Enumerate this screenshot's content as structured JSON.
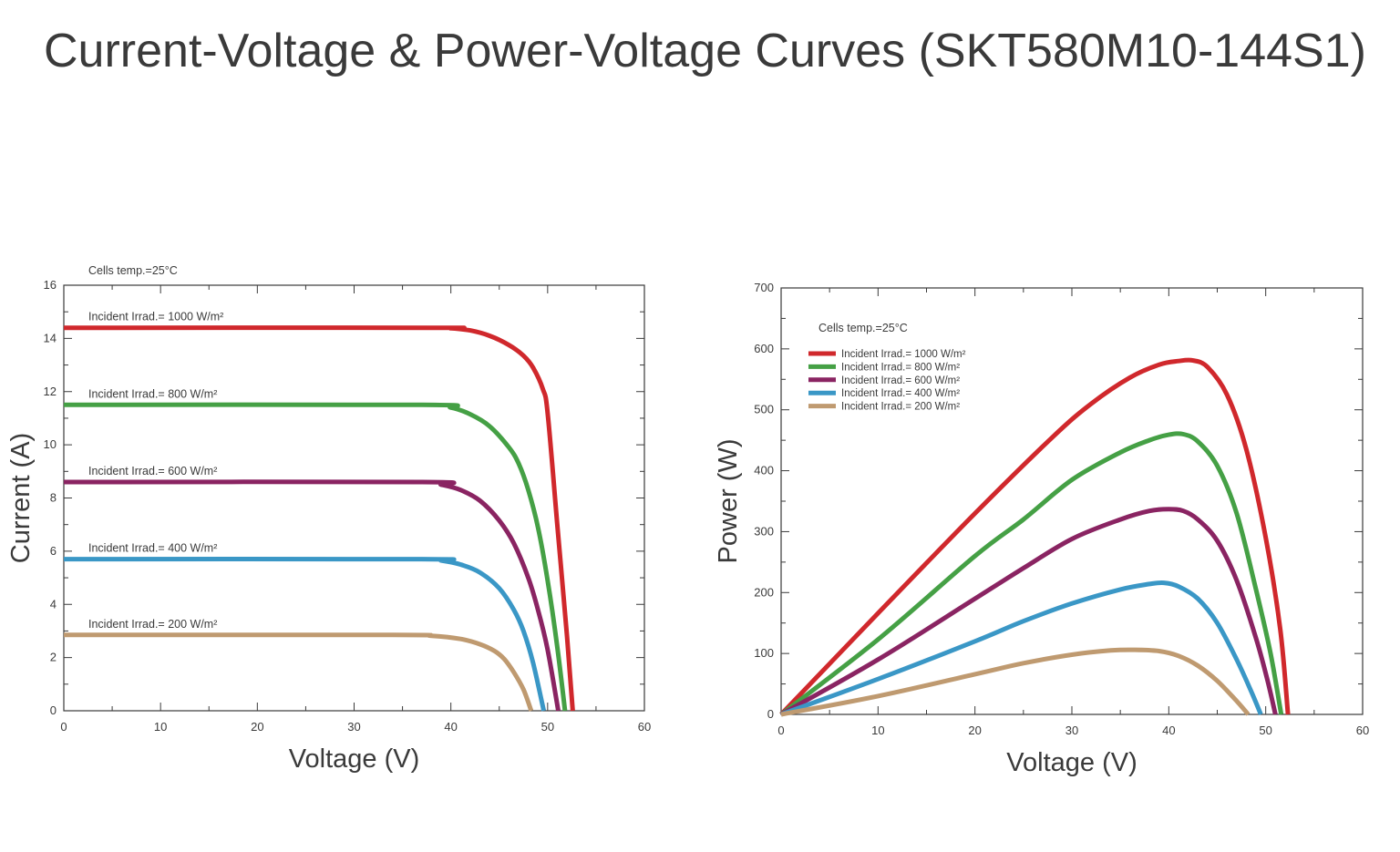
{
  "page": {
    "title": "Current-Voltage & Power-Voltage Curves (SKT580M10-144S1)"
  },
  "chart_data": [
    {
      "type": "line",
      "title": "Current-Voltage",
      "xlabel": "Voltage (V)",
      "ylabel": "Current (A)",
      "xlim": [
        0,
        60
      ],
      "ylim": [
        0,
        16
      ],
      "xticks": [
        0,
        10,
        20,
        30,
        40,
        50,
        60
      ],
      "yticks": [
        0,
        2,
        4,
        6,
        8,
        10,
        12,
        14,
        16
      ],
      "annotation": "Cells temp.=25°C",
      "legend": "inline-labels",
      "series": [
        {
          "name": "Incident Irrad.= 1000 W/m²",
          "color": "#d0282c",
          "x": [
            0,
            38,
            40,
            42,
            44,
            46,
            47.5,
            48.5,
            49.5,
            50,
            51,
            52,
            52.6
          ],
          "y": [
            14.4,
            14.4,
            14.38,
            14.3,
            14.1,
            13.75,
            13.35,
            12.9,
            12.1,
            11.2,
            7.0,
            2.8,
            0
          ]
        },
        {
          "name": "Incident Irrad.= 800 W/m²",
          "color": "#45a045",
          "x": [
            0,
            37,
            40,
            42,
            44,
            46,
            47,
            48,
            49,
            50,
            51,
            51.8
          ],
          "y": [
            11.5,
            11.5,
            11.4,
            11.15,
            10.7,
            9.9,
            9.3,
            8.3,
            6.9,
            4.9,
            2.4,
            0
          ]
        },
        {
          "name": "Incident Irrad.= 600 W/m²",
          "color": "#8a2462",
          "x": [
            0,
            37,
            39,
            41,
            43,
            45,
            46.5,
            48,
            49,
            50,
            51.1
          ],
          "y": [
            8.6,
            8.6,
            8.5,
            8.3,
            7.9,
            7.15,
            6.3,
            5.0,
            3.8,
            2.3,
            0
          ]
        },
        {
          "name": "Incident Irrad.= 400 W/m²",
          "color": "#3a97c6",
          "x": [
            0,
            37,
            39,
            41,
            43,
            45,
            46.5,
            47.5,
            48.5,
            49.6
          ],
          "y": [
            5.7,
            5.7,
            5.65,
            5.5,
            5.2,
            4.6,
            3.8,
            3.0,
            1.8,
            0
          ]
        },
        {
          "name": "Incident Irrad.= 200 W/m²",
          "color": "#bf9a70",
          "x": [
            0,
            34,
            38,
            41,
            43,
            44.5,
            45.5,
            46.5,
            47.5,
            48.3
          ],
          "y": [
            2.85,
            2.85,
            2.82,
            2.7,
            2.5,
            2.25,
            1.95,
            1.45,
            0.8,
            0
          ]
        }
      ]
    },
    {
      "type": "line",
      "title": "Power-Voltage",
      "xlabel": "Voltage (V)",
      "ylabel": "Power (W)",
      "xlim": [
        0,
        60
      ],
      "ylim": [
        0,
        700
      ],
      "xticks": [
        0,
        10,
        20,
        30,
        40,
        50,
        60
      ],
      "yticks": [
        0,
        100,
        200,
        300,
        400,
        500,
        600,
        700
      ],
      "annotation": "Cells temp.=25°C",
      "legend": "top-left",
      "series": [
        {
          "name": "Incident Irrad.= 1000 W/m²",
          "color": "#d0282c",
          "x": [
            0,
            10,
            20,
            28,
            32,
            36,
            39,
            41,
            42.5,
            44,
            46,
            48,
            50,
            51.5,
            52.3
          ],
          "y": [
            0,
            166,
            330,
            455,
            510,
            553,
            574,
            580,
            581,
            570,
            525,
            435,
            290,
            140,
            0
          ]
        },
        {
          "name": "Incident Irrad.= 800 W/m²",
          "color": "#45a045",
          "x": [
            0,
            10,
            20,
            25,
            30,
            35,
            38,
            40,
            41.5,
            43,
            45,
            47,
            49,
            50.5,
            51.6
          ],
          "y": [
            0,
            123,
            260,
            320,
            385,
            430,
            450,
            459,
            460,
            448,
            408,
            330,
            205,
            100,
            0
          ]
        },
        {
          "name": "Incident Irrad.= 600 W/m²",
          "color": "#8a2462",
          "x": [
            0,
            10,
            20,
            25,
            30,
            35,
            38,
            40,
            41.5,
            43,
            45,
            47,
            49,
            50.2,
            51.0
          ],
          "y": [
            0,
            90,
            190,
            240,
            288,
            320,
            334,
            337,
            334,
            320,
            285,
            220,
            125,
            55,
            0
          ]
        },
        {
          "name": "Incident Irrad.= 400 W/m²",
          "color": "#3a97c6",
          "x": [
            0,
            10,
            20,
            25,
            30,
            35,
            38,
            39.5,
            41,
            43,
            45,
            47,
            48.5,
            49.5
          ],
          "y": [
            0,
            58,
            120,
            153,
            182,
            205,
            214,
            216,
            210,
            190,
            150,
            90,
            38,
            0
          ]
        },
        {
          "name": "Incident Irrad.= 200 W/m²",
          "color": "#bf9a70",
          "x": [
            0,
            10,
            20,
            25,
            30,
            34,
            36.5,
            39,
            41,
            43,
            45,
            47,
            48.2
          ],
          "y": [
            0,
            30,
            66,
            84,
            98,
            105,
            106,
            104,
            96,
            80,
            55,
            22,
            0
          ]
        }
      ]
    }
  ]
}
